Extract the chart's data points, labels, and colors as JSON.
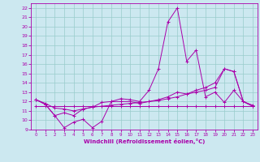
{
  "xlabel": "Windchill (Refroidissement éolien,°C)",
  "background_color": "#cce8f0",
  "line_color": "#aa00aa",
  "grid_color": "#99cccc",
  "xlim": [
    -0.5,
    23.5
  ],
  "ylim": [
    9,
    22.5
  ],
  "yticks": [
    9,
    10,
    11,
    12,
    13,
    14,
    15,
    16,
    17,
    18,
    19,
    20,
    21,
    22
  ],
  "xticks": [
    0,
    1,
    2,
    3,
    4,
    5,
    6,
    7,
    8,
    9,
    10,
    11,
    12,
    13,
    14,
    15,
    16,
    17,
    18,
    19,
    20,
    21,
    22,
    23
  ],
  "series": [
    [
      12.2,
      11.7,
      10.5,
      9.2,
      9.8,
      10.1,
      9.2,
      9.9,
      12.0,
      12.3,
      12.2,
      12.0,
      13.2,
      15.5,
      20.5,
      22.0,
      16.3,
      17.5,
      12.5,
      13.0,
      11.9,
      13.2,
      12.0,
      11.6
    ],
    [
      12.2,
      11.7,
      10.5,
      10.8,
      10.5,
      11.2,
      11.4,
      11.9,
      12.0,
      12.0,
      12.0,
      11.8,
      12.0,
      12.2,
      12.5,
      13.0,
      12.8,
      13.0,
      13.2,
      13.5,
      15.5,
      15.2,
      12.0,
      11.5
    ],
    [
      12.2,
      11.8,
      11.3,
      11.2,
      11.0,
      11.2,
      11.4,
      11.5,
      11.6,
      11.7,
      11.8,
      11.9,
      12.0,
      12.1,
      12.3,
      12.5,
      12.8,
      13.2,
      13.5,
      14.0,
      15.5,
      15.2,
      12.0,
      11.5
    ],
    [
      11.5,
      11.5,
      11.5,
      11.5,
      11.5,
      11.5,
      11.5,
      11.5,
      11.5,
      11.5,
      11.5,
      11.5,
      11.5,
      11.5,
      11.5,
      11.5,
      11.5,
      11.5,
      11.5,
      11.5,
      11.5,
      11.5,
      11.5,
      11.5
    ]
  ]
}
